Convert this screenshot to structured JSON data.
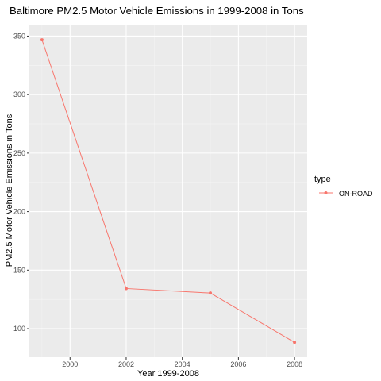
{
  "chart_data": {
    "type": "line",
    "title": "Baltimore PM2.5 Motor Vehicle Emissions in 1999-2008 in Tons",
    "xlabel": "Year 1999-2008",
    "ylabel": "PM2.5 Motor Vehicle Emissions in Tons",
    "xlim": [
      1998.55,
      2008.45
    ],
    "ylim": [
      75.6,
      359.8
    ],
    "x_ticks": [
      2000,
      2002,
      2004,
      2006,
      2008
    ],
    "y_ticks": [
      100,
      150,
      200,
      250,
      300,
      350
    ],
    "x_tick_labels": [
      "2000",
      "2002",
      "2004",
      "2006",
      "2008"
    ],
    "y_tick_labels": [
      "100",
      "150",
      "200",
      "250",
      "300",
      "350"
    ],
    "grid": true,
    "legend": {
      "title": "type",
      "position": "right"
    },
    "series": [
      {
        "name": "ON-ROAD",
        "color": "#f8766d",
        "x": [
          1999,
          2002,
          2005,
          2008
        ],
        "y": [
          346.82,
          134.31,
          130.43,
          88.28
        ]
      }
    ]
  }
}
